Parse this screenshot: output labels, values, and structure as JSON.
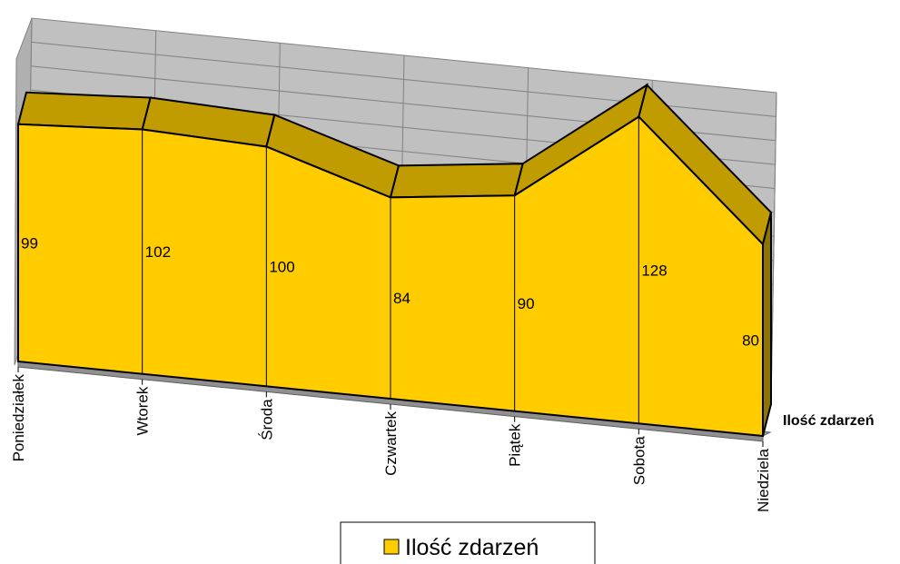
{
  "chart_data": {
    "type": "area3d",
    "categories": [
      "Poniedziałek",
      "Wtorek",
      "Środa",
      "Czwartek",
      "Piątek",
      "Sobota",
      "Niedziela"
    ],
    "series": [
      {
        "name": "Ilość zdarzeń",
        "color": "#ffcc00",
        "values": [
          99,
          102,
          100,
          84,
          90,
          128,
          80
        ]
      }
    ],
    "ylim": [
      0,
      130
    ],
    "grid": true,
    "legend": "bottom"
  }
}
